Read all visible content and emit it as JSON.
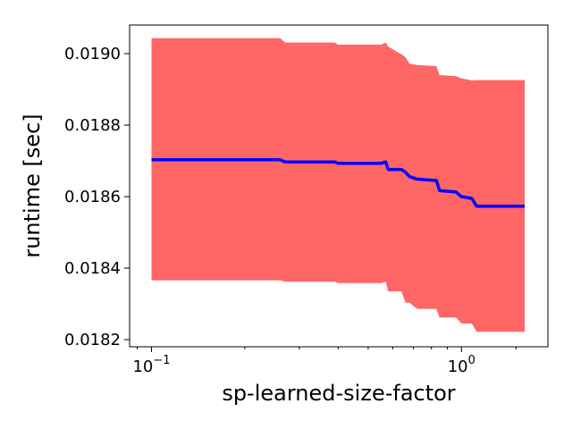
{
  "chart_data": {
    "type": "area",
    "title": "",
    "xlabel": "sp-learned-size-factor",
    "ylabel": "runtime [sec]",
    "xscale": "log",
    "xlim": [
      0.085,
      1.9
    ],
    "ylim": [
      0.01818,
      0.01908
    ],
    "grid": false,
    "colors": {
      "mean_line": "#0000ff",
      "band": "#ff6666"
    },
    "x_ticks": [
      {
        "value": 0.1,
        "base": "10",
        "exp": "−1"
      },
      {
        "value": 1.0,
        "base": "10",
        "exp": "0"
      }
    ],
    "y_ticks": [
      {
        "value": 0.0182,
        "label": "0.0182"
      },
      {
        "value": 0.0184,
        "label": "0.0184"
      },
      {
        "value": 0.0186,
        "label": "0.0186"
      },
      {
        "value": 0.0188,
        "label": "0.0188"
      },
      {
        "value": 0.019,
        "label": "0.0190"
      }
    ],
    "series": [
      {
        "x": [
          0.1,
          0.26,
          0.27,
          0.39,
          0.4,
          0.55,
          0.57,
          0.58,
          0.64,
          0.66,
          0.68,
          0.72,
          0.83,
          0.85,
          0.96,
          1.0,
          1.08,
          1.12,
          1.6
        ],
        "mean": [
          0.018703,
          0.018703,
          0.018697,
          0.018697,
          0.018693,
          0.018693,
          0.018697,
          0.018676,
          0.018676,
          0.018668,
          0.018656,
          0.018649,
          0.018645,
          0.018617,
          0.018613,
          0.0186,
          0.018595,
          0.018573,
          0.018573
        ],
        "upper": [
          0.019043,
          0.019043,
          0.019031,
          0.019031,
          0.019025,
          0.019025,
          0.019031,
          0.01902,
          0.018998,
          0.01899,
          0.018972,
          0.018968,
          0.018965,
          0.01894,
          0.018937,
          0.018931,
          0.018925,
          0.018926,
          0.018926
        ],
        "lower": [
          0.018366,
          0.018366,
          0.018362,
          0.018362,
          0.018358,
          0.018358,
          0.018362,
          0.018335,
          0.018335,
          0.018303,
          0.018303,
          0.018286,
          0.018286,
          0.018262,
          0.018262,
          0.018245,
          0.018245,
          0.018222,
          0.018222
        ]
      }
    ]
  }
}
